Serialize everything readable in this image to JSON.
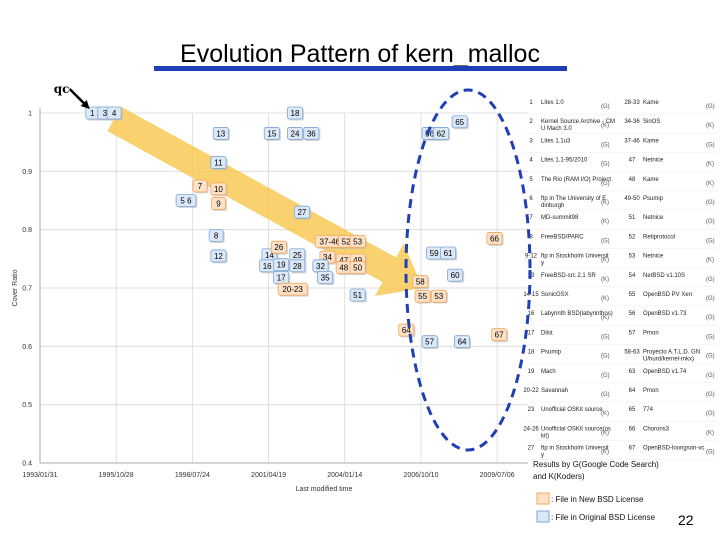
{
  "slide": {
    "title": "Evolution Pattern of kern_malloc",
    "number": "22",
    "accent_color": "#1f3fb6",
    "arrow_color": "#f7c64a",
    "ellipse_color": "#1f3fb6"
  },
  "chart_data": {
    "type": "scatter",
    "title": "",
    "xlabel": "Last modified time",
    "ylabel": "Cover Ratio",
    "ylim": [
      0.4,
      1.0
    ],
    "xlim": [
      "1993/01/31",
      "2010/08/15"
    ],
    "x_ticks": [
      "1993/01/31",
      "1995/10/28",
      "1998/07/24",
      "2001/04/19",
      "2004/01/14",
      "2006/10/10",
      "2009/07/06"
    ],
    "y_ticks": [
      "1",
      "0.9",
      "0.8",
      "0.7",
      "0.6",
      "0.5",
      "0.4"
    ],
    "grid": true,
    "qc_label": "qc",
    "series": [
      {
        "name": "File in New BSD License",
        "color": "#f4a75a",
        "fill": "#fde1c6"
      },
      {
        "name": "File in Original BSD License",
        "color": "#7fa6d8",
        "fill": "#dbe8f7"
      }
    ],
    "points": [
      {
        "label": "1 2",
        "x": "1995/02/01",
        "y": 1.0,
        "series": 1
      },
      {
        "label": "3",
        "x": "1995/06/01",
        "y": 1.0,
        "series": 1
      },
      {
        "label": "4",
        "x": "1995/10/01",
        "y": 1.0,
        "series": 1
      },
      {
        "label": "18",
        "x": "2002/04/01",
        "y": 1.0,
        "series": 1
      },
      {
        "label": "65",
        "x": "2008/03/01",
        "y": 0.985,
        "series": 1
      },
      {
        "label": "56",
        "x": "2007/02/01",
        "y": 0.965,
        "series": 1
      },
      {
        "label": "62",
        "x": "2007/07/01",
        "y": 0.965,
        "series": 1
      },
      {
        "label": "13",
        "x": "1999/08/01",
        "y": 0.965,
        "series": 1
      },
      {
        "label": "15",
        "x": "2001/06/01",
        "y": 0.965,
        "series": 1
      },
      {
        "label": "24",
        "x": "2002/04/01",
        "y": 0.965,
        "series": 1
      },
      {
        "label": "36",
        "x": "2002/11/01",
        "y": 0.965,
        "series": 1
      },
      {
        "label": "11",
        "x": "1999/07/01",
        "y": 0.915,
        "series": 1
      },
      {
        "label": "7",
        "x": "1998/11/01",
        "y": 0.875,
        "series": 0
      },
      {
        "label": "10",
        "x": "1999/07/01",
        "y": 0.87,
        "series": 0
      },
      {
        "label": "5 6",
        "x": "1998/05/01",
        "y": 0.85,
        "series": 1
      },
      {
        "label": "9",
        "x": "1999/07/01",
        "y": 0.845,
        "series": 0
      },
      {
        "label": "27",
        "x": "2002/07/01",
        "y": 0.83,
        "series": 1
      },
      {
        "label": "8",
        "x": "1999/06/01",
        "y": 0.79,
        "series": 1
      },
      {
        "label": "37-46",
        "x": "2003/07/01",
        "y": 0.78,
        "series": 0
      },
      {
        "label": "52",
        "x": "2004/02/01",
        "y": 0.78,
        "series": 0
      },
      {
        "label": "53",
        "x": "2004/07/01",
        "y": 0.78,
        "series": 0
      },
      {
        "label": "66",
        "x": "2009/06/01",
        "y": 0.785,
        "series": 0
      },
      {
        "label": "12",
        "x": "1999/07/01",
        "y": 0.755,
        "series": 1
      },
      {
        "label": "14",
        "x": "2001/05/01",
        "y": 0.757,
        "series": 1
      },
      {
        "label": "26",
        "x": "2001/09/01",
        "y": 0.77,
        "series": 0
      },
      {
        "label": "25",
        "x": "2002/05/01",
        "y": 0.757,
        "series": 1
      },
      {
        "label": "34",
        "x": "2003/06/01",
        "y": 0.753,
        "series": 0
      },
      {
        "label": "47",
        "x": "2004/01/01",
        "y": 0.748,
        "series": 0
      },
      {
        "label": "49",
        "x": "2004/07/01",
        "y": 0.748,
        "series": 0
      },
      {
        "label": "48",
        "x": "2004/01/01",
        "y": 0.735,
        "series": 0
      },
      {
        "label": "50",
        "x": "2004/07/01",
        "y": 0.735,
        "series": 0
      },
      {
        "label": "59",
        "x": "2007/04/01",
        "y": 0.76,
        "series": 1
      },
      {
        "label": "61",
        "x": "2007/10/01",
        "y": 0.76,
        "series": 1
      },
      {
        "label": "16",
        "x": "2001/04/01",
        "y": 0.738,
        "series": 1
      },
      {
        "label": "19",
        "x": "2001/10/01",
        "y": 0.74,
        "series": 1
      },
      {
        "label": "28",
        "x": "2002/05/01",
        "y": 0.738,
        "series": 1
      },
      {
        "label": "32",
        "x": "2003/03/01",
        "y": 0.738,
        "series": 1
      },
      {
        "label": "17",
        "x": "2001/10/01",
        "y": 0.718,
        "series": 1
      },
      {
        "label": "35",
        "x": "2003/05/01",
        "y": 0.718,
        "series": 1
      },
      {
        "label": "20-23",
        "x": "2002/03/01",
        "y": 0.698,
        "series": 0
      },
      {
        "label": "60",
        "x": "2008/01/01",
        "y": 0.722,
        "series": 1
      },
      {
        "label": "58",
        "x": "2006/10/01",
        "y": 0.711,
        "series": 0
      },
      {
        "label": "51",
        "x": "2004/07/01",
        "y": 0.688,
        "series": 1
      },
      {
        "label": "55",
        "x": "2006/11/01",
        "y": 0.686,
        "series": 0
      },
      {
        "label": "53",
        "x": "2007/06/01",
        "y": 0.686,
        "series": 0
      },
      {
        "label": "64",
        "x": "2006/04/01",
        "y": 0.628,
        "series": 0
      },
      {
        "label": "67",
        "x": "2009/08/01",
        "y": 0.62,
        "series": 0
      },
      {
        "label": "57",
        "x": "2007/02/01",
        "y": 0.608,
        "series": 1
      },
      {
        "label": "64",
        "x": "2008/04/01",
        "y": 0.608,
        "series": 1
      }
    ]
  },
  "legend": {
    "rows": [
      {
        "ids": "1",
        "name": "Lites 1.0",
        "mark": "(G)",
        "ids2": "28-33",
        "name2": "Kame",
        "mark2": "(G)"
      },
      {
        "ids": "2",
        "name": "Kernel Source Archive - CMU Mach 3.0",
        "mark": "(K)",
        "ids2": "34-36",
        "name2": "SinOS",
        "mark2": "(K)"
      },
      {
        "ids": "3",
        "name": "Lites 1.1u3",
        "mark": "(G)",
        "ids2": "37-46",
        "name2": "Kame",
        "mark2": "(G)"
      },
      {
        "ids": "4",
        "name": "Lites 1.1-95/2010",
        "mark": "(G)",
        "ids2": "47",
        "name2": "Netnice",
        "mark2": "(K)"
      },
      {
        "ids": "5",
        "name": "The Rio (RAM I/O) Project",
        "mark": "(G)",
        "ids2": "48",
        "name2": "Kame",
        "mark2": "(K)"
      },
      {
        "ids": "6",
        "name": "ftp in The University of Edinburgh",
        "mark": "(K)",
        "ids2": "49-50",
        "name2": "Psumip",
        "mark2": "(G)"
      },
      {
        "ids": "7",
        "name": "MD-summit98",
        "mark": "(K)",
        "ids2": "51",
        "name2": "Netnice",
        "mark2": "(G)"
      },
      {
        "ids": "8",
        "name": "FreeBSD/PARC",
        "mark": "(G)",
        "ids2": "52",
        "name2": "Retiprotocol",
        "mark2": "(G)"
      },
      {
        "ids": "9-12",
        "name": "ftp in Stockholm University",
        "mark": "(K)",
        "ids2": "53",
        "name2": "Netnice",
        "mark2": "(K)"
      },
      {
        "ids": "13",
        "name": "FreeBSD-src 2.1 SR",
        "mark": "(K)",
        "ids2": "54",
        "name2": "NetBSD v1.10S",
        "mark2": "(G)"
      },
      {
        "ids": "14-15",
        "name": "SonicGSX",
        "mark": "(K)",
        "ids2": "55",
        "name2": "OpenBSD PV Xen",
        "mark2": "(G)"
      },
      {
        "ids": "16",
        "name": "Labyrinth BSD(labyrinthos)",
        "mark": "(K)",
        "ids2": "56",
        "name2": "OpenBSD v1.73",
        "mark2": "(G)"
      },
      {
        "ids": "17",
        "name": "Dlist",
        "mark": "(G)",
        "ids2": "57",
        "name2": "Pmon",
        "mark2": "(G)"
      },
      {
        "ids": "18",
        "name": "Psumip",
        "mark": "(G)",
        "ids2": "58-63",
        "name2": "Proyecto A.T.L.D. GNU/hurd/kernel-mkx)",
        "mark2": "(G)"
      },
      {
        "ids": "19",
        "name": "Mach",
        "mark": "(G)",
        "ids2": "63",
        "name2": "OpenBSD v1.74",
        "mark2": "(G)"
      },
      {
        "ids": "20-22",
        "name": "Savannah",
        "mark": "(G)",
        "ids2": "64",
        "name2": "Pmon",
        "mark2": "(G)"
      },
      {
        "ids": "23",
        "name": "Unofficial OSKit source",
        "mark": "(K)",
        "ids2": "65",
        "name2": "774",
        "mark2": "(G)"
      },
      {
        "ids": "24-26",
        "name": "Unofficial OSKit source(oskit)",
        "mark": "(K)",
        "ids2": "66",
        "name2": "Chorons3",
        "mark2": "(K)"
      },
      {
        "ids": "27",
        "name": "ftp in Stockholm University",
        "mark": "(K)",
        "ids2": "67",
        "name2": "OpenBSD-loongson-vc",
        "mark2": "(G)"
      }
    ],
    "note_line1": "Results by G(Google Code Search)",
    "note_line2": "and K(Koders)",
    "key_new": ": File in New BSD License",
    "key_orig": ": File in Original BSD License"
  }
}
